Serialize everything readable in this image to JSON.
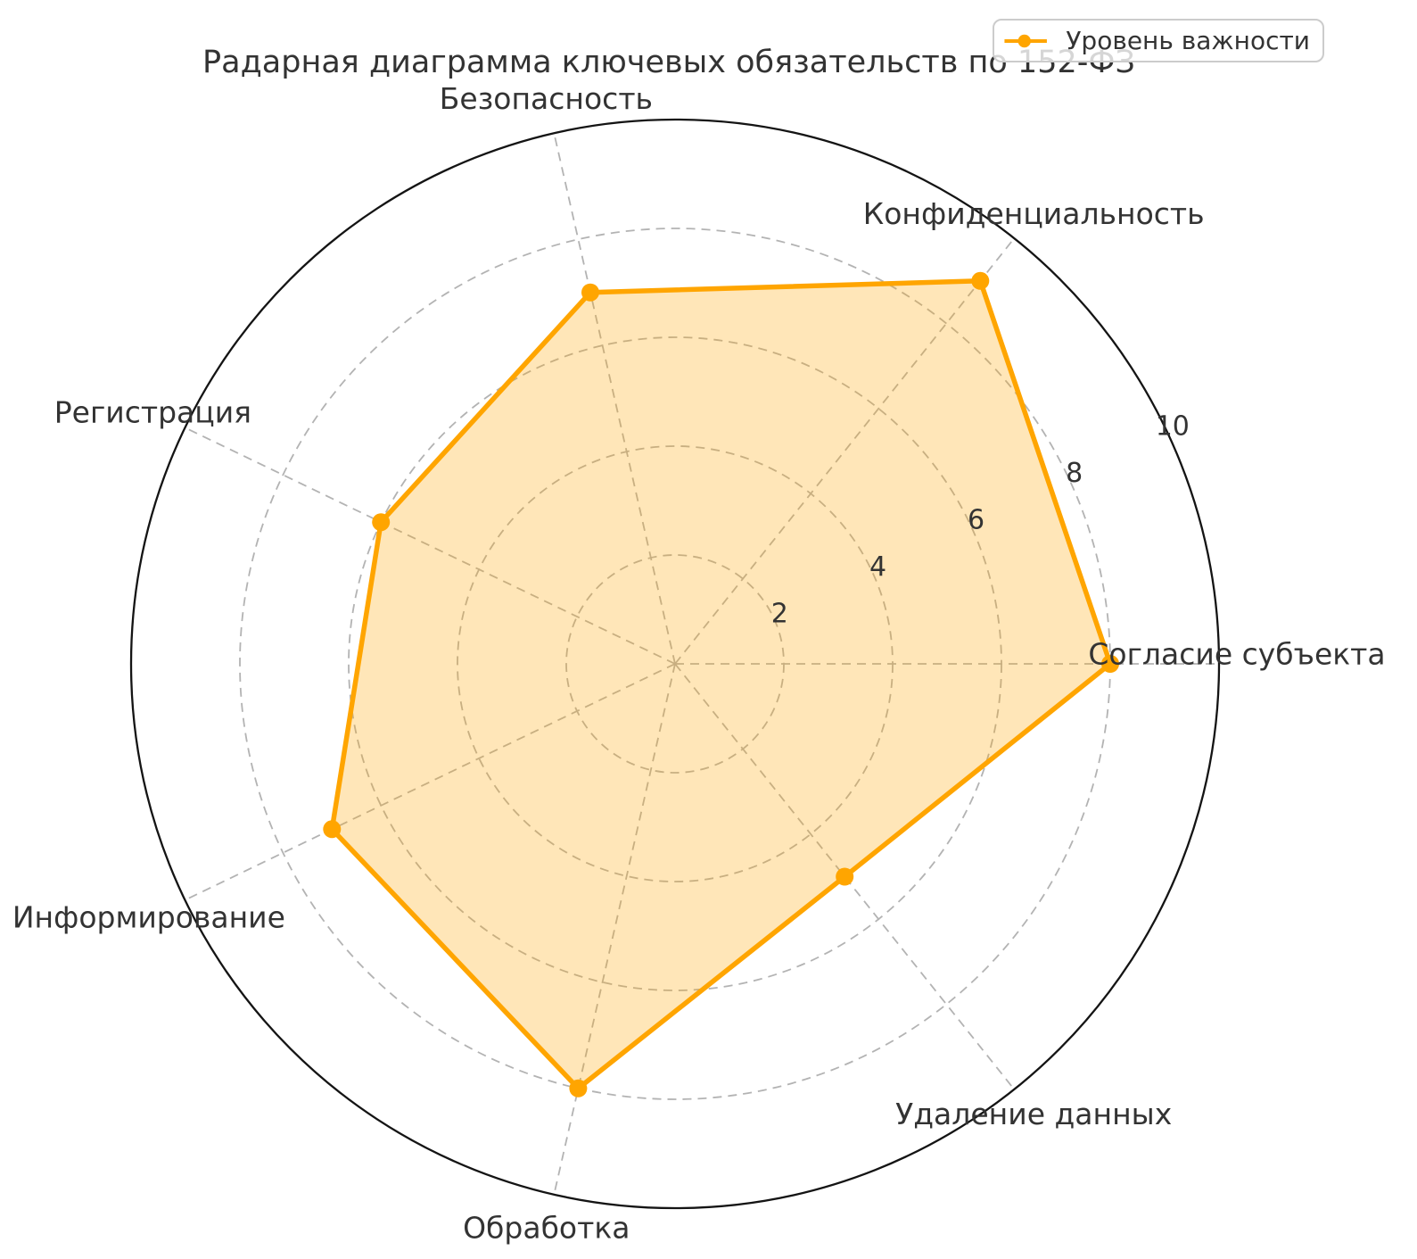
{
  "chart_data": {
    "type": "radar",
    "title": "Радарная диаграмма ключевых обязательств по 152-ФЗ",
    "categories": [
      "Согласие субъекта",
      "Конфиденциальность",
      "Безопасность",
      "Регистрация",
      "Информирование",
      "Обработка",
      "Удаление данных"
    ],
    "series": [
      {
        "name": "Уровень важности",
        "values": [
          8,
          9,
          7,
          6,
          7,
          8,
          5
        ]
      }
    ],
    "r_ticks": [
      2,
      4,
      6,
      8,
      10
    ],
    "r_max": 10,
    "angle_start_deg": 0,
    "direction": "counterclockwise",
    "grid": true,
    "legend_position": "upper right",
    "colors": {
      "line": "#FFA500",
      "fill_rgba": "rgba(255,165,0,0.28)",
      "grid": "#b3b3b3",
      "spine": "#141414",
      "text": "#333333"
    }
  }
}
